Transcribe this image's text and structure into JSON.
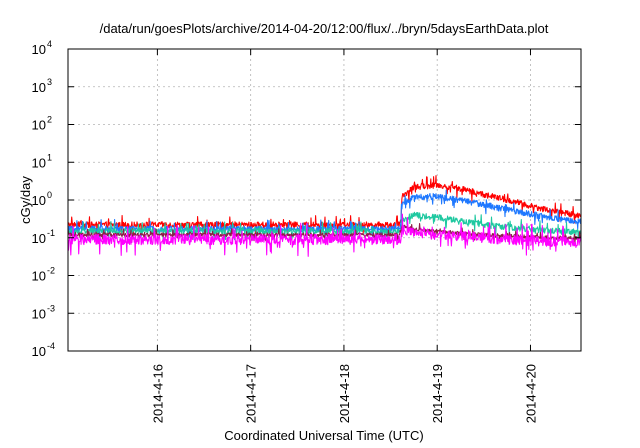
{
  "chart_data": {
    "type": "line",
    "title": "/data/run/goesPlots/archive/2014-04-20/12:00/flux/../bryn/5daysEarthData.plot",
    "xlabel": "Coordinated Universal Time (UTC)",
    "ylabel": "cGy/day",
    "yscale": "log",
    "ylim": [
      0.0001,
      10000
    ],
    "xlim": [
      "2014-04-15T01:00",
      "2014-04-20T13:00"
    ],
    "grid": true,
    "legend": "none",
    "y_ticks": [
      {
        "mantissa": "10",
        "exp": "-4"
      },
      {
        "mantissa": "10",
        "exp": "-3"
      },
      {
        "mantissa": "10",
        "exp": "-2"
      },
      {
        "mantissa": "10",
        "exp": "-1"
      },
      {
        "mantissa": "10",
        "exp": "0"
      },
      {
        "mantissa": "10",
        "exp": "1"
      },
      {
        "mantissa": "10",
        "exp": "2"
      },
      {
        "mantissa": "10",
        "exp": "3"
      },
      {
        "mantissa": "10",
        "exp": "4"
      }
    ],
    "x_ticks": [
      "2014-4-16",
      "2014-4-17",
      "2014-4-18",
      "2014-4-19",
      "2014-4-20"
    ],
    "series": [
      {
        "color": "#ff0000",
        "x": [
          "2014-04-15T01:00",
          "2014-04-15T12:00",
          "2014-04-16T12:00",
          "2014-04-17T12:00",
          "2014-04-18T12:00",
          "2014-04-18T14:30",
          "2014-04-18T15:00",
          "2014-04-18T18:00",
          "2014-04-19T00:00",
          "2014-04-19T06:00",
          "2014-04-19T12:00",
          "2014-04-19T18:00",
          "2014-04-20T00:00",
          "2014-04-20T06:00",
          "2014-04-20T13:00"
        ],
        "values": [
          0.22,
          0.22,
          0.22,
          0.22,
          0.22,
          0.22,
          1.2,
          2.2,
          2.5,
          2.0,
          1.4,
          1.0,
          0.7,
          0.5,
          0.38
        ]
      },
      {
        "color": "#1e78ff",
        "x": [
          "2014-04-15T01:00",
          "2014-04-15T12:00",
          "2014-04-16T12:00",
          "2014-04-17T12:00",
          "2014-04-18T12:00",
          "2014-04-18T14:30",
          "2014-04-18T15:00",
          "2014-04-18T18:00",
          "2014-04-19T00:00",
          "2014-04-19T06:00",
          "2014-04-19T12:00",
          "2014-04-19T18:00",
          "2014-04-20T00:00",
          "2014-04-20T06:00",
          "2014-04-20T13:00"
        ],
        "values": [
          0.17,
          0.17,
          0.17,
          0.17,
          0.17,
          0.17,
          0.8,
          1.2,
          1.25,
          1.0,
          0.75,
          0.55,
          0.42,
          0.33,
          0.26
        ]
      },
      {
        "color": "#1ec8a0",
        "x": [
          "2014-04-15T01:00",
          "2014-04-15T12:00",
          "2014-04-16T12:00",
          "2014-04-17T12:00",
          "2014-04-18T12:00",
          "2014-04-18T14:30",
          "2014-04-18T15:00",
          "2014-04-18T18:00",
          "2014-04-19T00:00",
          "2014-04-19T06:00",
          "2014-04-19T12:00",
          "2014-04-19T18:00",
          "2014-04-20T00:00",
          "2014-04-20T06:00",
          "2014-04-20T13:00"
        ],
        "values": [
          0.15,
          0.15,
          0.15,
          0.15,
          0.15,
          0.15,
          0.3,
          0.4,
          0.35,
          0.28,
          0.22,
          0.19,
          0.17,
          0.15,
          0.14
        ]
      },
      {
        "color": "#8c1e46",
        "x": [
          "2014-04-15T01:00",
          "2014-04-15T12:00",
          "2014-04-16T12:00",
          "2014-04-17T12:00",
          "2014-04-18T12:00",
          "2014-04-18T14:30",
          "2014-04-18T15:00",
          "2014-04-18T18:00",
          "2014-04-19T00:00",
          "2014-04-19T06:00",
          "2014-04-19T12:00",
          "2014-04-19T18:00",
          "2014-04-20T00:00",
          "2014-04-20T06:00",
          "2014-04-20T13:00"
        ],
        "values": [
          0.12,
          0.12,
          0.12,
          0.12,
          0.12,
          0.12,
          0.2,
          0.17,
          0.15,
          0.13,
          0.12,
          0.11,
          0.105,
          0.1,
          0.1
        ]
      },
      {
        "color": "#ff00ff",
        "x": [
          "2014-04-15T01:00",
          "2014-04-15T12:00",
          "2014-04-16T12:00",
          "2014-04-17T12:00",
          "2014-04-18T12:00",
          "2014-04-18T14:30",
          "2014-04-18T15:00",
          "2014-04-18T18:00",
          "2014-04-19T00:00",
          "2014-04-19T06:00",
          "2014-04-19T12:00",
          "2014-04-19T18:00",
          "2014-04-20T00:00",
          "2014-04-20T06:00",
          "2014-04-20T13:00"
        ],
        "values": [
          0.09,
          0.09,
          0.09,
          0.09,
          0.09,
          0.09,
          0.16,
          0.14,
          0.12,
          0.11,
          0.1,
          0.09,
          0.085,
          0.08,
          0.075
        ]
      }
    ]
  }
}
